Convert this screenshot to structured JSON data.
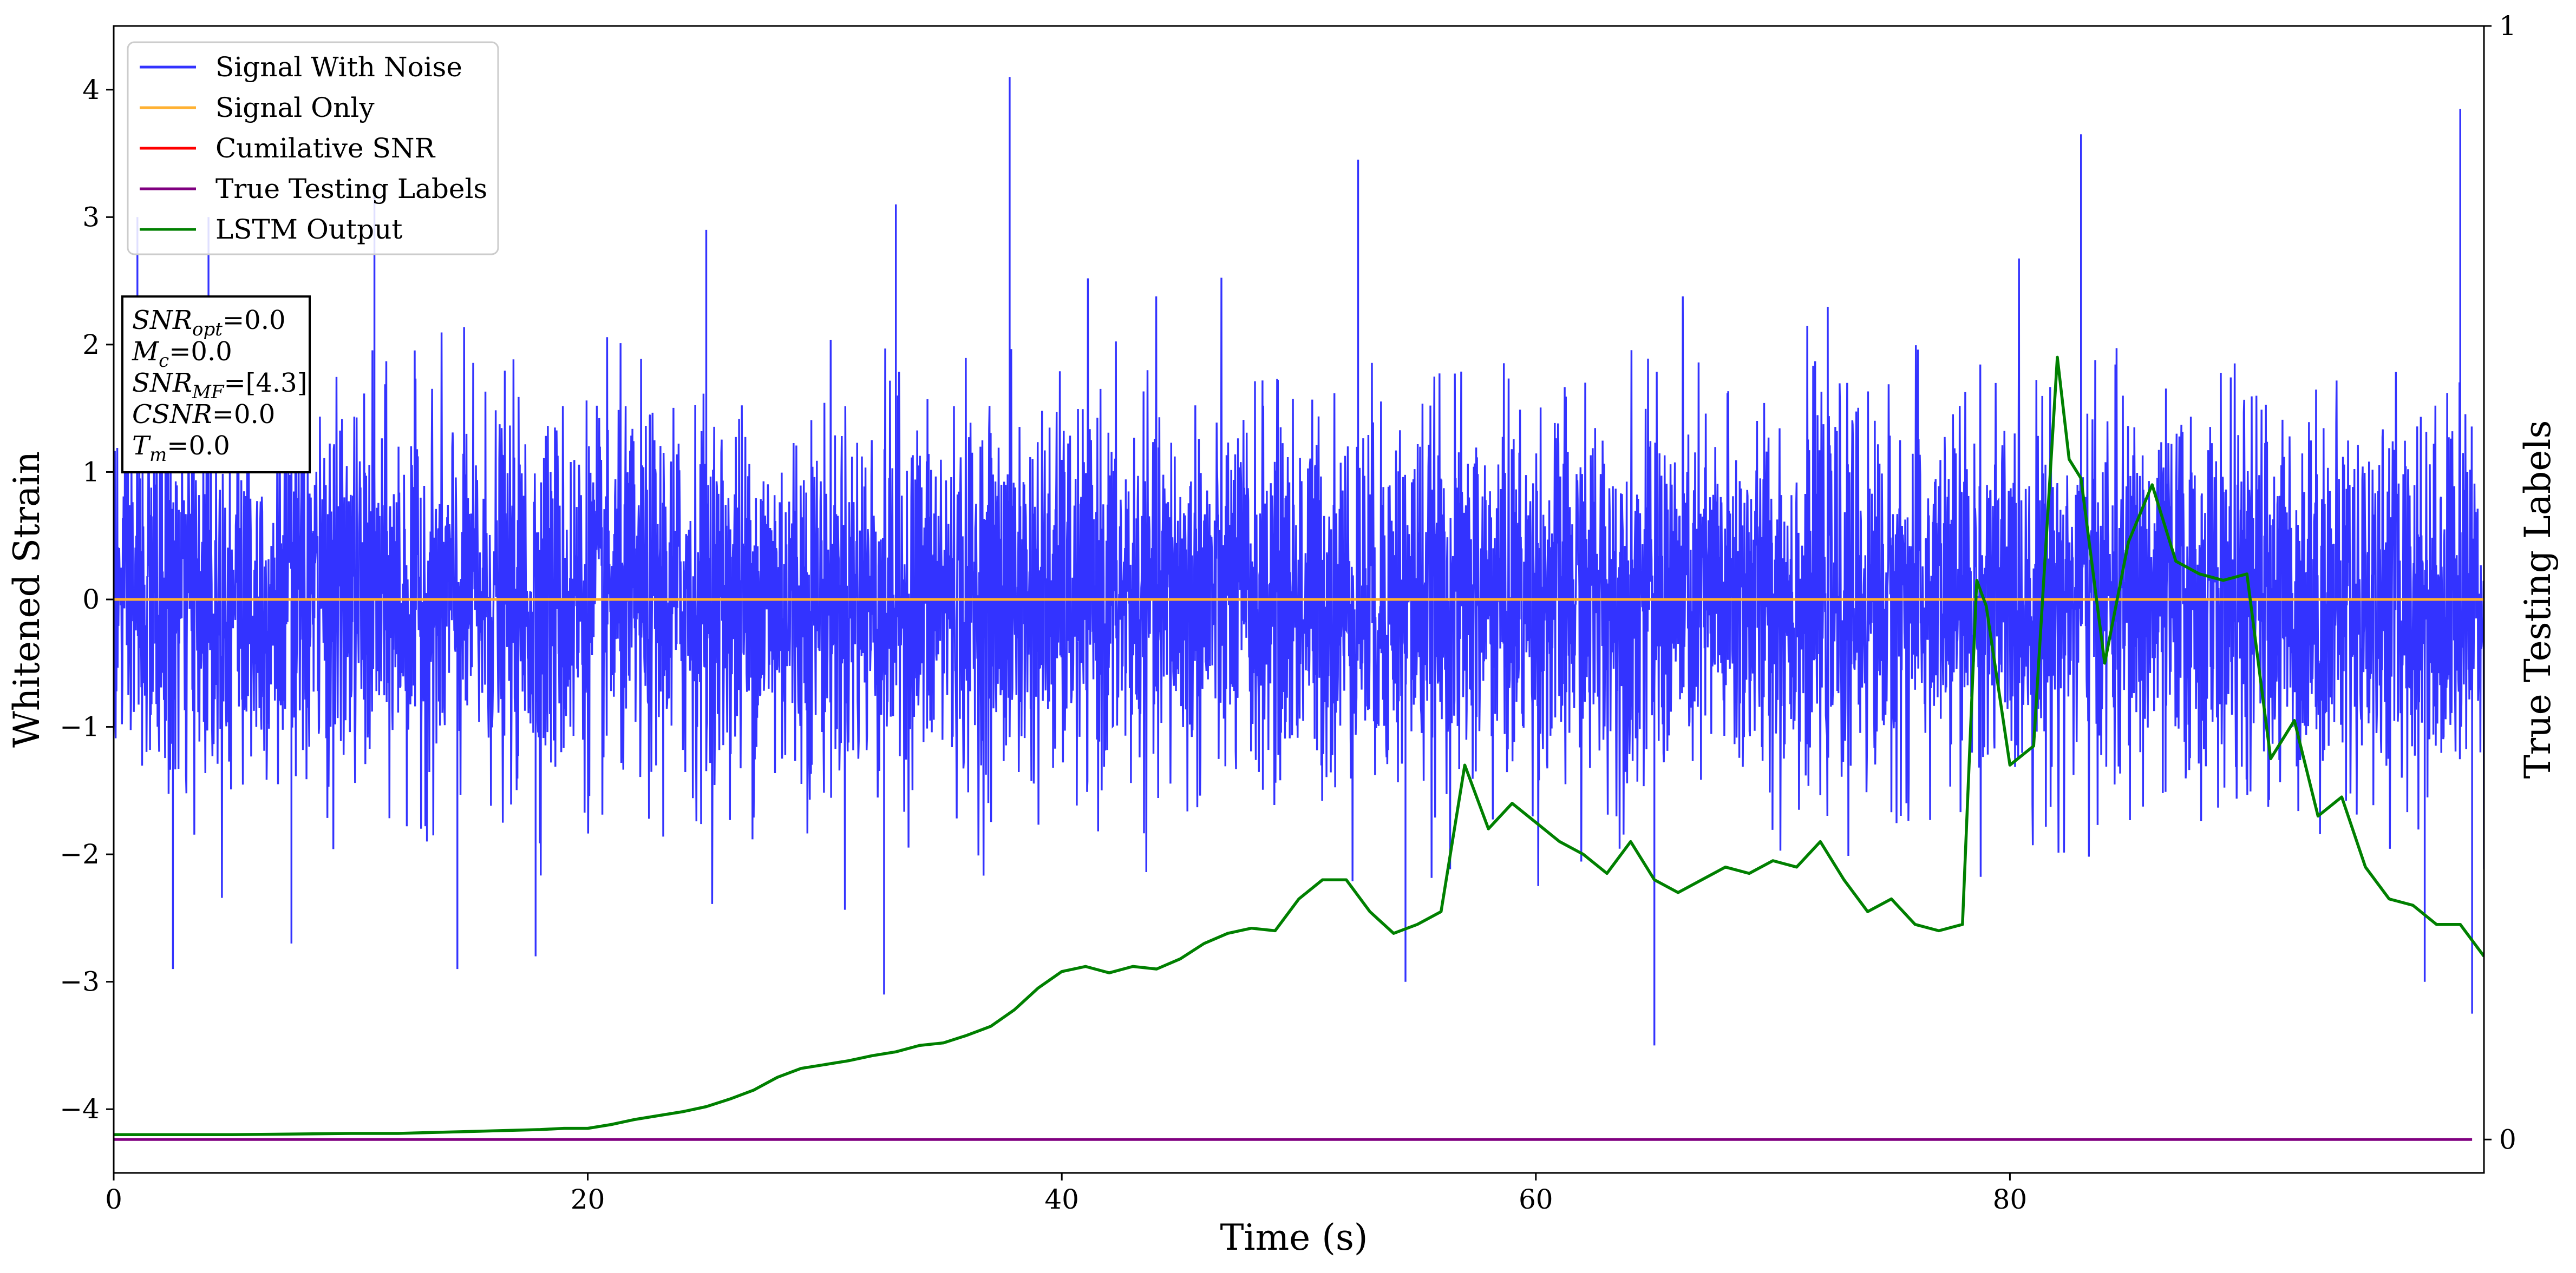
{
  "chart_data": {
    "type": "line",
    "xlabel": "Time (s)",
    "ylabel": "Whitened Strain",
    "y2label": "True Testing Labels",
    "xlim": [
      0,
      100
    ],
    "ylim": [
      -4.5,
      4.5
    ],
    "y2lim": [
      -0.03,
      1.0
    ],
    "xticks": [
      0,
      20,
      40,
      60,
      80
    ],
    "yticks": [
      -4,
      -3,
      -2,
      -1,
      0,
      1,
      2,
      3,
      4
    ],
    "y2ticks": [
      0,
      1
    ],
    "legend": {
      "placement": "upper-left",
      "entries": [
        {
          "label": "Signal With Noise",
          "color": "#3333ff"
        },
        {
          "label": "Signal Only",
          "color": "#ffb132"
        },
        {
          "label": "Cumilative SNR",
          "color": "#ff0000"
        },
        {
          "label": "True Testing Labels",
          "color": "#800080"
        },
        {
          "label": "LSTM Output",
          "color": "#008000"
        }
      ]
    },
    "info_box": [
      {
        "base": "SNR",
        "sub": "opt",
        "value": "=0.0"
      },
      {
        "base": "M",
        "sub": "c",
        "value": "=0.0"
      },
      {
        "base": "SNR",
        "sub": "MF",
        "value": "=[4.3]"
      },
      {
        "base": "CSNR",
        "sub": "",
        "value": "=0.0"
      },
      {
        "base": "T",
        "sub": "m",
        "value": "=0.0"
      }
    ],
    "series": [
      {
        "name": "Signal With Noise",
        "color": "#3333ff",
        "description": "dense white noise around 0, mostly within -1.5..1.5, spikes up to ~4.1 and down to ~-3.5",
        "peaks": [
          [
            1,
            3.0
          ],
          [
            4,
            3.0
          ],
          [
            11,
            3.2
          ],
          [
            25,
            2.9
          ],
          [
            33,
            3.1
          ],
          [
            37.8,
            4.1
          ],
          [
            52.5,
            3.45
          ],
          [
            83,
            3.65
          ],
          [
            99,
            3.85
          ]
        ],
        "troughs": [
          [
            2.5,
            -2.9
          ],
          [
            7.5,
            -2.7
          ],
          [
            14.5,
            -2.9
          ],
          [
            17.8,
            -2.8
          ],
          [
            32.5,
            -3.1
          ],
          [
            54.5,
            -3.0
          ],
          [
            65,
            -3.5
          ],
          [
            97.5,
            -3.0
          ],
          [
            99.5,
            -3.25
          ]
        ]
      },
      {
        "name": "Signal Only",
        "color": "#ffb132",
        "y": 0.0
      },
      {
        "name": "Cumilative SNR",
        "color": "#ff0000",
        "y": 0.0
      },
      {
        "name": "True Testing Labels",
        "color": "#800080",
        "axis": "right",
        "y": 0.0
      },
      {
        "name": "LSTM Output",
        "color": "#008000",
        "axis": "left-scale",
        "x": [
          0,
          5,
          10,
          12,
          14,
          16,
          18,
          19,
          20,
          21,
          22,
          23,
          24,
          25,
          26,
          27,
          28,
          29,
          30,
          31,
          32,
          33,
          34,
          35,
          36,
          37,
          38,
          39,
          40,
          41,
          42,
          43,
          44,
          45,
          46,
          47,
          48,
          49,
          50,
          51,
          52,
          53,
          54,
          55,
          56,
          57,
          58,
          59,
          60,
          61,
          62,
          63,
          64,
          65,
          66,
          67,
          68,
          69,
          70,
          71,
          72,
          73,
          74,
          75,
          76,
          77,
          78,
          78.6,
          79,
          80,
          81,
          82,
          82.5,
          83,
          84,
          85,
          86,
          87,
          88,
          89,
          90,
          91,
          92,
          93,
          94,
          95,
          96,
          97,
          98,
          99,
          100
        ],
        "y": [
          -4.2,
          -4.2,
          -4.19,
          -4.19,
          -4.18,
          -4.17,
          -4.16,
          -4.15,
          -4.15,
          -4.12,
          -4.08,
          -4.05,
          -4.02,
          -3.98,
          -3.92,
          -3.85,
          -3.75,
          -3.68,
          -3.65,
          -3.62,
          -3.58,
          -3.55,
          -3.5,
          -3.48,
          -3.42,
          -3.35,
          -3.22,
          -3.05,
          -2.92,
          -2.88,
          -2.93,
          -2.88,
          -2.9,
          -2.82,
          -2.7,
          -2.62,
          -2.58,
          -2.6,
          -2.35,
          -2.2,
          -2.2,
          -2.45,
          -2.62,
          -2.55,
          -2.45,
          -1.3,
          -1.8,
          -1.6,
          -1.75,
          -1.9,
          -2.0,
          -2.15,
          -1.9,
          -2.2,
          -2.3,
          -2.2,
          -2.1,
          -2.15,
          -2.05,
          -2.1,
          -1.9,
          -2.2,
          -2.45,
          -2.35,
          -2.55,
          -2.6,
          -2.55,
          0.15,
          -0.05,
          -1.3,
          -1.15,
          1.9,
          1.1,
          0.95,
          -0.5,
          0.45,
          0.9,
          0.3,
          0.2,
          0.15,
          0.2,
          -1.25,
          -0.95,
          -1.7,
          -1.55,
          -2.1,
          -2.35,
          -2.4,
          -2.55,
          -2.55,
          -2.8
        ]
      }
    ]
  }
}
